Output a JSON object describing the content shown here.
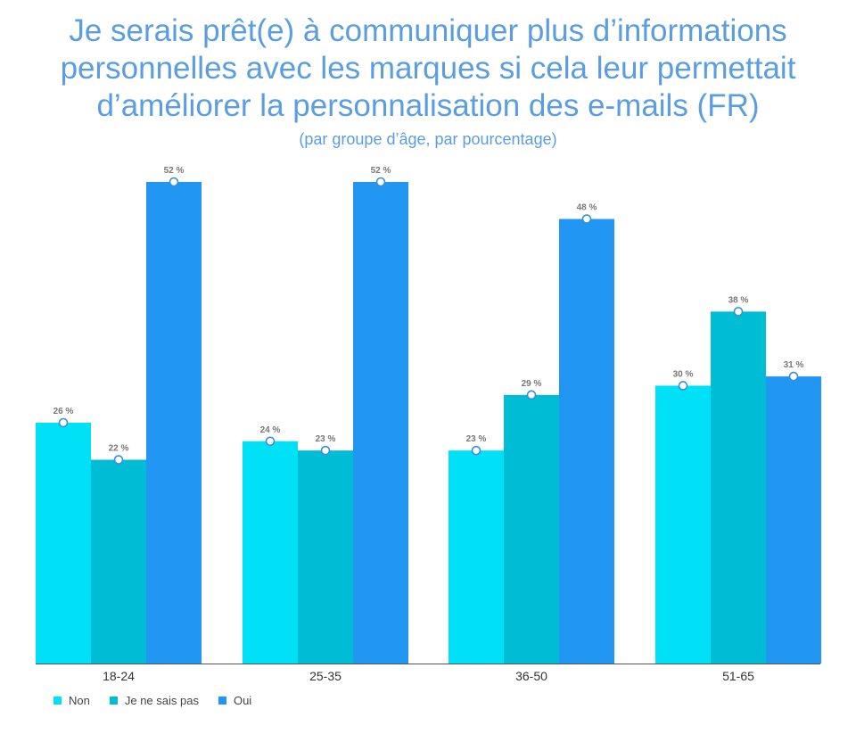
{
  "chart_data": {
    "type": "bar",
    "title_lines": [
      "Je serais prêt(e) à communiquer plus d’informations",
      "personnelles avec les marques si cela leur permettait",
      "d’améliorer la personnalisation des e-mails (FR)"
    ],
    "subtitle": "(par groupe d’âge, par pourcentage)",
    "categories": [
      "18-24",
      "25-35",
      "36-50",
      "51-65"
    ],
    "series": [
      {
        "name": "Non",
        "values": [
          26,
          24,
          23,
          30
        ],
        "labels": [
          "26 %",
          "24 %",
          "23 %",
          "30 %"
        ],
        "color": "#00e1f7"
      },
      {
        "name": "Je ne sais pas",
        "values": [
          22,
          23,
          29,
          38
        ],
        "labels": [
          "22 %",
          "23 %",
          "29 %",
          "38 %"
        ],
        "color": "#00bcd4"
      },
      {
        "name": "Oui",
        "values": [
          52,
          52,
          48,
          31
        ],
        "labels": [
          "52 %",
          "52 %",
          "48 %",
          "31 %"
        ],
        "color": "#2196f3"
      }
    ],
    "ylim": [
      0,
      52
    ],
    "xlabel": "",
    "ylabel": "",
    "grid": false,
    "legend_position": "bottom-left"
  }
}
